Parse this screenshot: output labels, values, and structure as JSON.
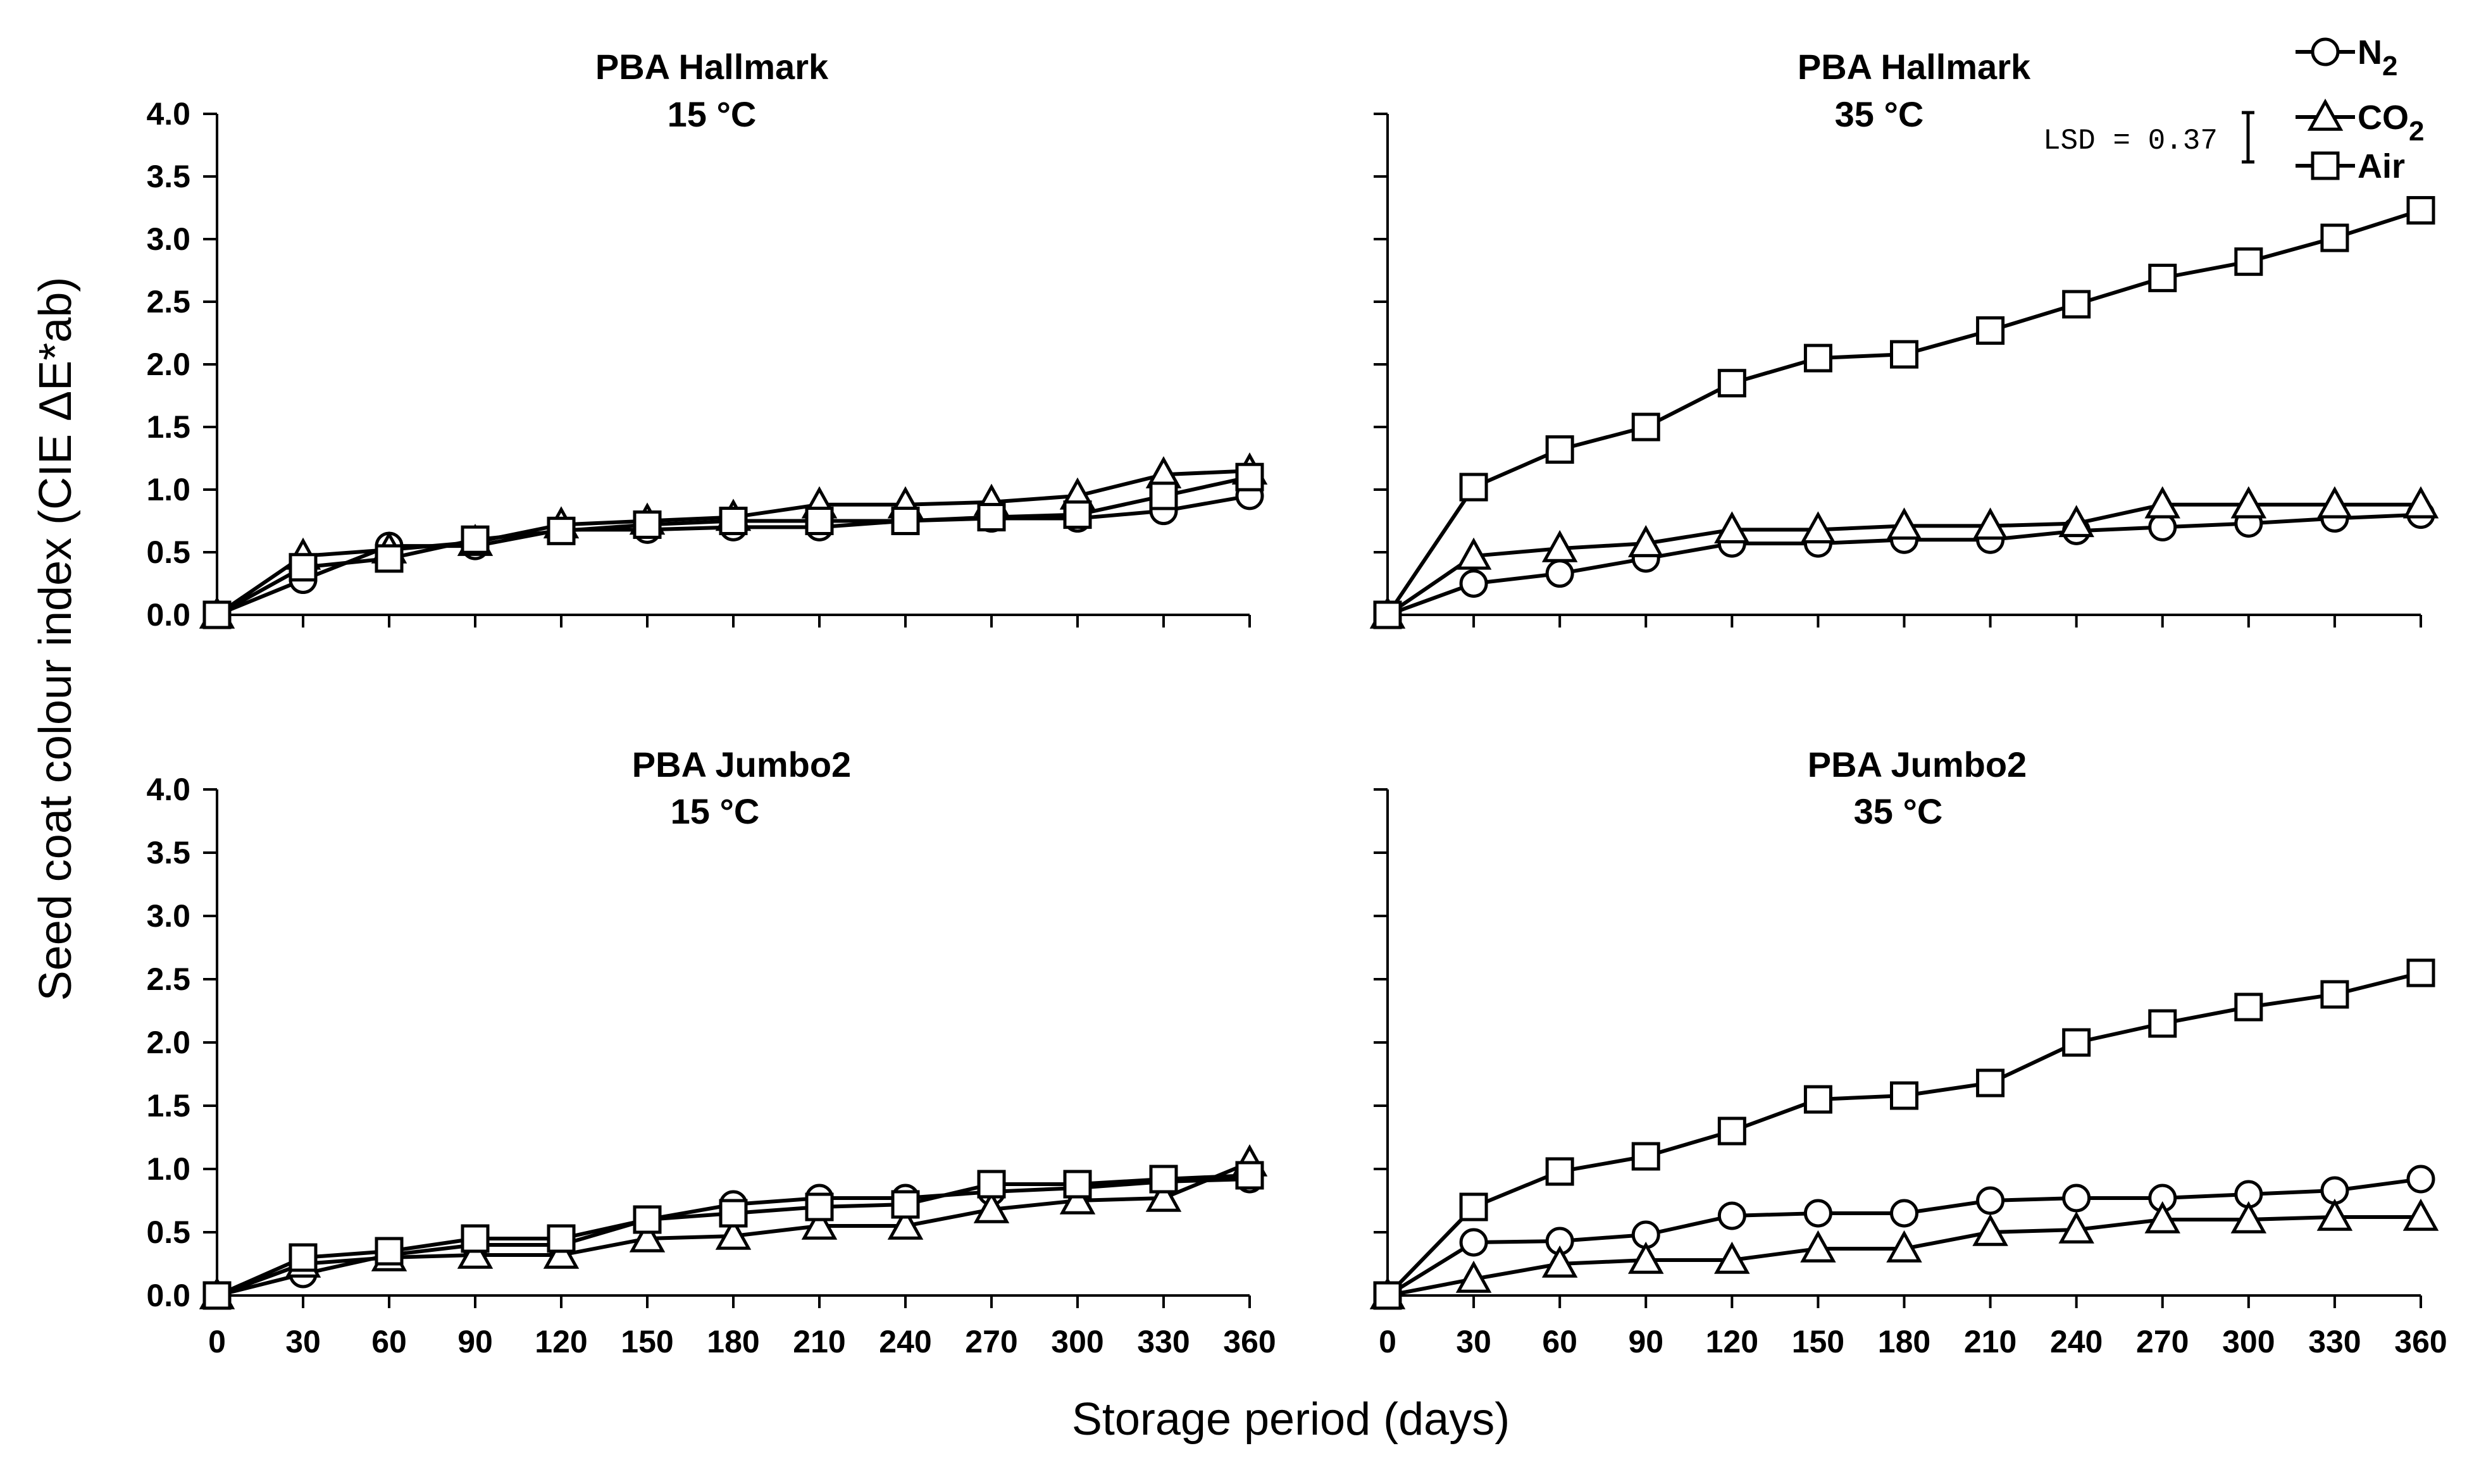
{
  "figure": {
    "ylabel": "Seed coat colour index (CIE ΔE*ab)",
    "xlabel": "Storage period (days)",
    "legend": [
      {
        "series": "N2",
        "label": "N",
        "sub": "2",
        "marker": "circle"
      },
      {
        "series": "CO2",
        "label": "CO",
        "sub": "2",
        "marker": "triangle"
      },
      {
        "series": "Air",
        "label": "Air",
        "sub": "",
        "marker": "square"
      }
    ],
    "lsd": "LSD = 0.37"
  },
  "chart_data": [
    {
      "type": "line",
      "title": "PBA Hallmark",
      "subtitle": "15 °C",
      "x": [
        0,
        30,
        60,
        90,
        120,
        150,
        180,
        210,
        240,
        270,
        300,
        330,
        360
      ],
      "ylim": [
        0,
        4
      ],
      "yticks": [
        "0.0",
        "0.5",
        "1.0",
        "1.5",
        "2.0",
        "2.5",
        "3.0",
        "3.5",
        "4.0"
      ],
      "series": [
        {
          "name": "N2",
          "marker": "circle",
          "values": [
            0,
            0.28,
            0.55,
            0.55,
            0.68,
            0.68,
            0.7,
            0.7,
            0.75,
            0.77,
            0.77,
            0.83,
            0.95
          ]
        },
        {
          "name": "CO2",
          "marker": "triangle",
          "values": [
            0,
            0.47,
            0.52,
            0.58,
            0.72,
            0.75,
            0.78,
            0.88,
            0.88,
            0.9,
            0.95,
            1.12,
            1.15
          ]
        },
        {
          "name": "Air",
          "marker": "square",
          "values": [
            0,
            0.38,
            0.45,
            0.6,
            0.67,
            0.72,
            0.75,
            0.75,
            0.75,
            0.78,
            0.8,
            0.95,
            1.1
          ]
        }
      ]
    },
    {
      "type": "line",
      "title": "PBA Hallmark",
      "subtitle": "35 °C",
      "x": [
        0,
        30,
        60,
        90,
        120,
        150,
        180,
        210,
        240,
        270,
        300,
        330,
        360
      ],
      "ylim": [
        0,
        4
      ],
      "series": [
        {
          "name": "N2",
          "marker": "circle",
          "values": [
            0,
            0.25,
            0.33,
            0.45,
            0.57,
            0.57,
            0.6,
            0.6,
            0.67,
            0.7,
            0.73,
            0.77,
            0.8
          ]
        },
        {
          "name": "CO2",
          "marker": "triangle",
          "values": [
            0,
            0.47,
            0.53,
            0.57,
            0.68,
            0.68,
            0.71,
            0.71,
            0.73,
            0.88,
            0.88,
            0.88,
            0.88
          ]
        },
        {
          "name": "Air",
          "marker": "square",
          "values": [
            0,
            1.02,
            1.32,
            1.5,
            1.85,
            2.05,
            2.08,
            2.27,
            2.48,
            2.69,
            2.82,
            3.01,
            3.23
          ]
        }
      ]
    },
    {
      "type": "line",
      "title": "PBA Jumbo2",
      "subtitle": "15 °C",
      "x": [
        0,
        30,
        60,
        90,
        120,
        150,
        180,
        210,
        240,
        270,
        300,
        330,
        360
      ],
      "ylim": [
        0,
        4
      ],
      "yticks": [
        "0.0",
        "0.5",
        "1.0",
        "1.5",
        "2.0",
        "2.5",
        "3.0",
        "3.5",
        "4.0"
      ],
      "xticks": [
        "0",
        "30",
        "60",
        "90",
        "120",
        "150",
        "180",
        "210",
        "240",
        "270",
        "300",
        "330",
        "360"
      ],
      "series": [
        {
          "name": "N2",
          "marker": "circle",
          "values": [
            0,
            0.17,
            0.32,
            0.4,
            0.4,
            0.6,
            0.72,
            0.77,
            0.77,
            0.82,
            0.85,
            0.9,
            0.92
          ]
        },
        {
          "name": "CO2",
          "marker": "triangle",
          "values": [
            0,
            0.25,
            0.3,
            0.32,
            0.32,
            0.45,
            0.47,
            0.55,
            0.55,
            0.68,
            0.75,
            0.77,
            1.05
          ]
        },
        {
          "name": "Air",
          "marker": "square",
          "values": [
            0,
            0.3,
            0.35,
            0.45,
            0.45,
            0.6,
            0.65,
            0.7,
            0.72,
            0.88,
            0.88,
            0.92,
            0.95
          ]
        }
      ]
    },
    {
      "type": "line",
      "title": "PBA Jumbo2",
      "subtitle": "35 °C",
      "x": [
        0,
        30,
        60,
        90,
        120,
        150,
        180,
        210,
        240,
        270,
        300,
        330,
        360
      ],
      "ylim": [
        0,
        4
      ],
      "xticks": [
        "0",
        "30",
        "60",
        "90",
        "120",
        "150",
        "180",
        "210",
        "240",
        "270",
        "300",
        "330",
        "360"
      ],
      "series": [
        {
          "name": "N2",
          "marker": "circle",
          "values": [
            0,
            0.42,
            0.43,
            0.48,
            0.63,
            0.65,
            0.65,
            0.75,
            0.77,
            0.77,
            0.8,
            0.83,
            0.92
          ]
        },
        {
          "name": "CO2",
          "marker": "triangle",
          "values": [
            0,
            0.13,
            0.25,
            0.28,
            0.28,
            0.37,
            0.37,
            0.5,
            0.52,
            0.6,
            0.6,
            0.62,
            0.62
          ]
        },
        {
          "name": "Air",
          "marker": "square",
          "values": [
            0,
            0.7,
            0.98,
            1.1,
            1.3,
            1.55,
            1.58,
            1.68,
            2.0,
            2.15,
            2.28,
            2.38,
            2.55
          ]
        }
      ]
    }
  ]
}
